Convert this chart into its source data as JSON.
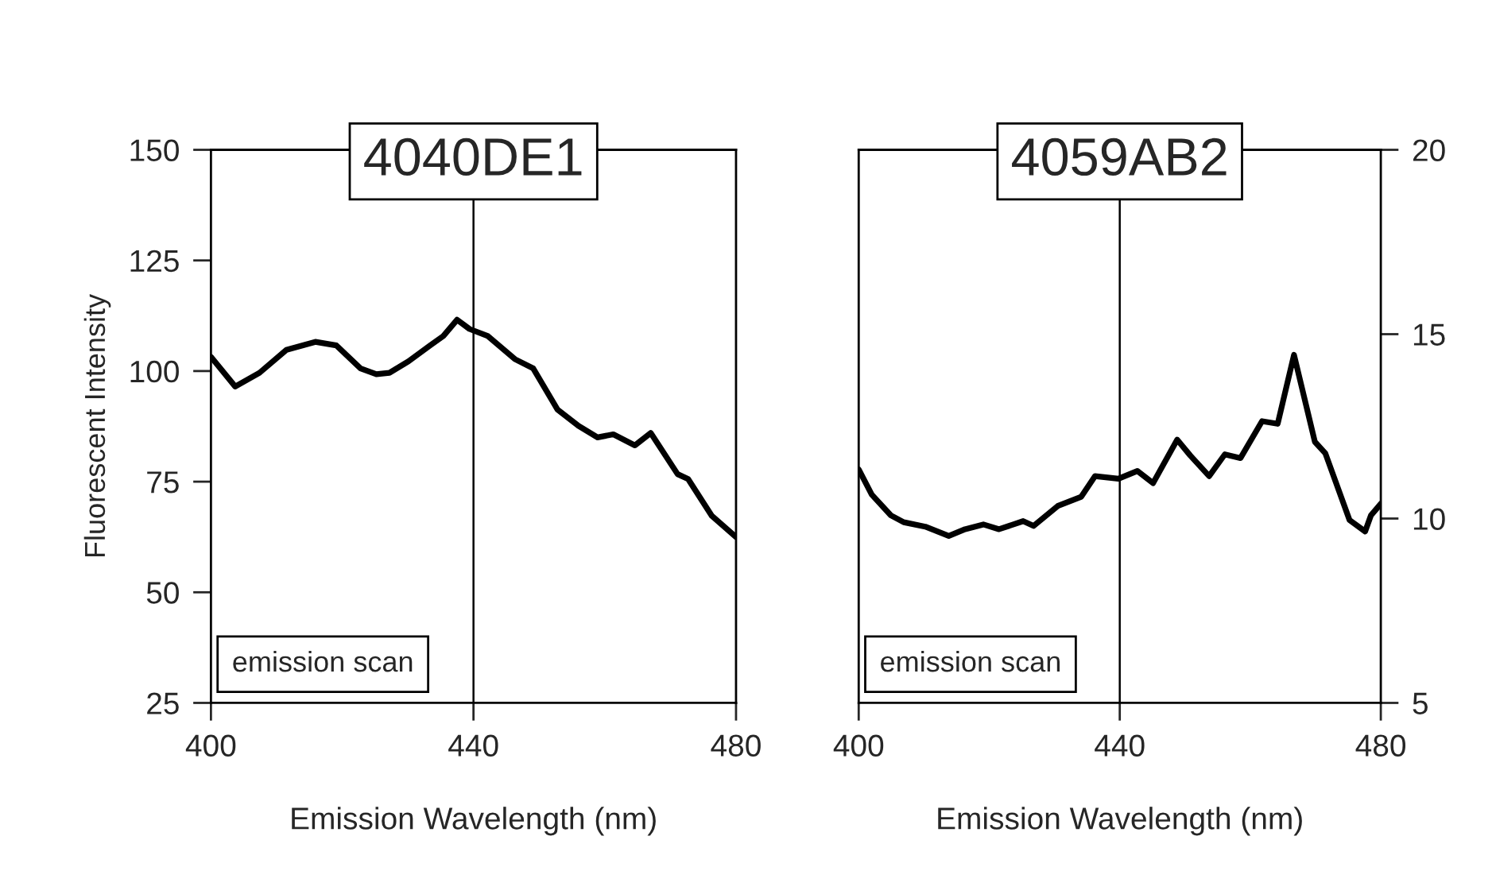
{
  "chart_data": [
    {
      "type": "line",
      "title": "4040DE1",
      "xlabel": "Emission Wavelength (nm)",
      "ylabel": "Fluorescent Intensity",
      "annotations": [
        "emission scan"
      ],
      "xlim": [
        400,
        480
      ],
      "xticks": [
        400,
        440,
        480
      ],
      "ylim": [
        25,
        150
      ],
      "yticks": [
        25,
        50,
        75,
        100,
        125,
        150
      ],
      "grid": false,
      "legend": false,
      "ref_lines": [
        {
          "axis": "x",
          "value": 440,
          "color": "#000000"
        }
      ],
      "series": [
        {
          "color": "#000000",
          "x": [
            400,
            403.7,
            407.4,
            411.5,
            415.9,
            419.1,
            422.8,
            425.2,
            427.2,
            430.1,
            433.4,
            435.4,
            437.5,
            439.4,
            442.2,
            446.3,
            449.1,
            452.8,
            456,
            458.9,
            461.3,
            464.6,
            467,
            471.1,
            472.7,
            476.3,
            480
          ],
          "values": [
            103.2,
            96.5,
            99.6,
            104.8,
            106.6,
            105.8,
            100.6,
            99.3,
            99.6,
            102.2,
            105.8,
            107.9,
            111.6,
            109.5,
            107.9,
            102.7,
            100.6,
            91.3,
            87.6,
            85,
            85.7,
            83.2,
            86,
            76.7,
            75.6,
            67.3,
            62.5
          ]
        }
      ]
    },
    {
      "type": "line",
      "title": "4059AB2",
      "xlabel": "Emission Wavelength (nm)",
      "annotations": [
        "emission scan"
      ],
      "xlim": [
        400,
        480
      ],
      "xticks": [
        400,
        440,
        480
      ],
      "y2lim": [
        5,
        20
      ],
      "y2ticks": [
        5,
        10,
        15,
        20
      ],
      "grid": false,
      "legend": false,
      "ref_lines": [
        {
          "axis": "x",
          "value": 440,
          "color": "#000000"
        }
      ],
      "series": [
        {
          "color": "#000000",
          "axis": "y2",
          "x": [
            400,
            402,
            404.9,
            406.9,
            410.2,
            413.8,
            416.3,
            419.1,
            421.5,
            425.2,
            426.8,
            430.5,
            434.1,
            436.2,
            439.8,
            442.7,
            445.1,
            448.8,
            450.8,
            453.7,
            456.1,
            458.5,
            461.8,
            464.2,
            466.7,
            469.9,
            471.5,
            475.2,
            477.6,
            478.5,
            480
          ],
          "values": [
            11.33,
            10.65,
            10.09,
            9.9,
            9.78,
            9.53,
            9.71,
            9.84,
            9.71,
            9.93,
            9.8,
            10.34,
            10.59,
            11.15,
            11.08,
            11.29,
            10.96,
            12.14,
            11.71,
            11.15,
            11.74,
            11.64,
            12.64,
            12.57,
            14.44,
            12.08,
            11.77,
            9.96,
            9.65,
            10.09,
            10.4
          ]
        }
      ]
    }
  ]
}
